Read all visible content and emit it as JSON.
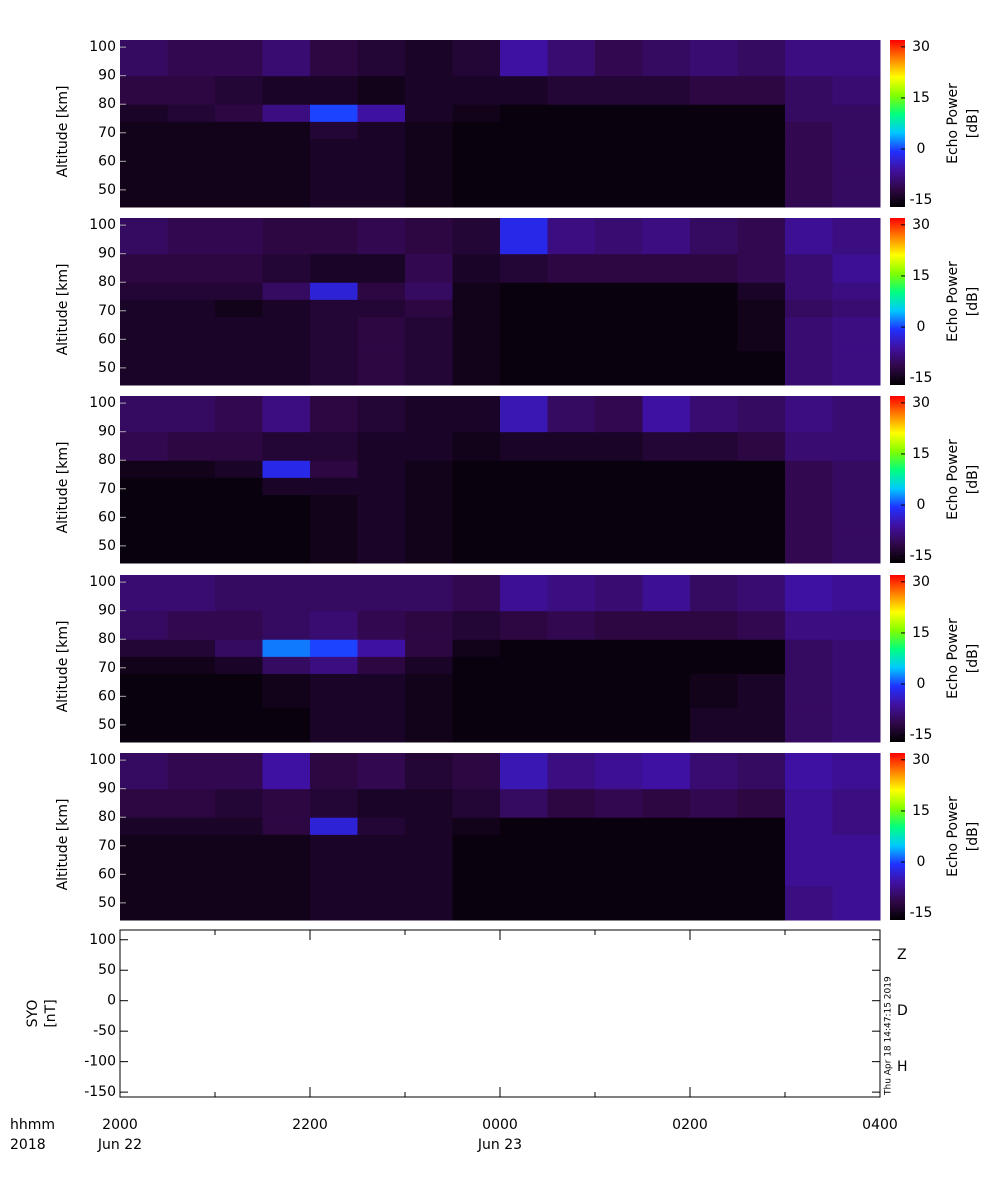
{
  "chart_data": [
    {
      "type": "heatmap",
      "ylabel": "Altitude [km]",
      "x_edges": [
        20,
        20.5,
        21,
        21.5,
        22,
        22.5,
        23,
        23.5,
        24,
        24.5,
        25,
        25.5,
        26,
        26.5,
        27,
        27.5,
        28
      ],
      "y_edges": [
        44,
        56,
        68,
        74,
        80,
        90,
        102.5
      ],
      "z": [
        [
          -15,
          -15,
          -15,
          -15,
          -14,
          -14,
          -15,
          -16,
          -16,
          -16,
          -16,
          -16,
          -16,
          -16,
          -11,
          -10
        ],
        [
          -15,
          -15,
          -15,
          -15,
          -14,
          -14,
          -15,
          -16,
          -16,
          -16,
          -16,
          -16,
          -16,
          -16,
          -11,
          -10
        ],
        [
          -15,
          -15,
          -15,
          -15,
          -13,
          -14,
          -15,
          -16,
          -16,
          -16,
          -16,
          -16,
          -16,
          -16,
          -11,
          -10
        ],
        [
          -14,
          -13,
          -12,
          -8,
          0,
          -6,
          -14,
          -15,
          -16,
          -16,
          -16,
          -16,
          -16,
          -16,
          -10,
          -10
        ],
        [
          -12,
          -12,
          -13,
          -14,
          -14,
          -15,
          -14,
          -14,
          -14,
          -13,
          -13,
          -13,
          -12,
          -12,
          -10,
          -9
        ],
        [
          -10,
          -11,
          -11,
          -9,
          -12,
          -13,
          -14,
          -13,
          -6,
          -9,
          -11,
          -10,
          -9,
          -10,
          -8,
          -8
        ]
      ],
      "xlim": [
        20,
        28
      ],
      "ylim": [
        44,
        102.5
      ],
      "yticks": [
        50,
        60,
        70,
        80,
        90,
        100
      ],
      "colorbar": {
        "label": [
          "Echo Power",
          "[dB]"
        ],
        "lim": [
          -17,
          32
        ],
        "ticks": [
          -15,
          0,
          15,
          30
        ]
      }
    },
    {
      "type": "heatmap",
      "ylabel": "Altitude [km]",
      "x_edges": [
        20,
        20.5,
        21,
        21.5,
        22,
        22.5,
        23,
        23.5,
        24,
        24.5,
        25,
        25.5,
        26,
        26.5,
        27,
        27.5,
        28
      ],
      "y_edges": [
        44,
        56,
        68,
        74,
        80,
        90,
        102.5
      ],
      "z": [
        [
          -14,
          -14,
          -14,
          -14,
          -13,
          -12,
          -13,
          -15,
          -16,
          -16,
          -16,
          -16,
          -16,
          -16,
          -9,
          -8
        ],
        [
          -14,
          -14,
          -14,
          -14,
          -13,
          -12,
          -13,
          -15,
          -16,
          -16,
          -16,
          -16,
          -16,
          -15,
          -9,
          -8
        ],
        [
          -14,
          -14,
          -15,
          -14,
          -13,
          -13,
          -12,
          -15,
          -16,
          -16,
          -16,
          -16,
          -16,
          -15,
          -10,
          -9
        ],
        [
          -13,
          -13,
          -13,
          -10,
          -3,
          -12,
          -10,
          -15,
          -16,
          -16,
          -16,
          -16,
          -16,
          -14,
          -9,
          -8
        ],
        [
          -12,
          -12,
          -12,
          -13,
          -14,
          -14,
          -11,
          -14,
          -13,
          -12,
          -12,
          -12,
          -12,
          -11,
          -9,
          -7
        ],
        [
          -10,
          -11,
          -11,
          -12,
          -12,
          -11,
          -12,
          -13,
          -2,
          -8,
          -9,
          -8,
          -10,
          -11,
          -7,
          -8
        ]
      ],
      "xlim": [
        20,
        28
      ],
      "ylim": [
        44,
        102.5
      ],
      "yticks": [
        50,
        60,
        70,
        80,
        90,
        100
      ],
      "colorbar": {
        "label": [
          "Echo Power",
          "[dB]"
        ],
        "lim": [
          -17,
          32
        ],
        "ticks": [
          -15,
          0,
          15,
          30
        ]
      }
    },
    {
      "type": "heatmap",
      "ylabel": "Altitude [km]",
      "x_edges": [
        20,
        20.5,
        21,
        21.5,
        22,
        22.5,
        23,
        23.5,
        24,
        24.5,
        25,
        25.5,
        26,
        26.5,
        27,
        27.5,
        28
      ],
      "y_edges": [
        44,
        56,
        68,
        74,
        80,
        90,
        102.5
      ],
      "z": [
        [
          -16,
          -16,
          -16,
          -16,
          -15,
          -14,
          -15,
          -16,
          -16,
          -16,
          -16,
          -16,
          -16,
          -16,
          -11,
          -10
        ],
        [
          -16,
          -16,
          -16,
          -16,
          -15,
          -14,
          -15,
          -16,
          -16,
          -16,
          -16,
          -16,
          -16,
          -16,
          -11,
          -10
        ],
        [
          -16,
          -16,
          -16,
          -14,
          -14,
          -14,
          -15,
          -16,
          -16,
          -16,
          -16,
          -16,
          -16,
          -16,
          -11,
          -10
        ],
        [
          -15,
          -15,
          -14,
          -2,
          -12,
          -14,
          -15,
          -16,
          -16,
          -16,
          -16,
          -16,
          -16,
          -16,
          -11,
          -10
        ],
        [
          -11,
          -12,
          -12,
          -13,
          -13,
          -14,
          -14,
          -15,
          -14,
          -14,
          -14,
          -13,
          -13,
          -12,
          -9,
          -9
        ],
        [
          -10,
          -10,
          -11,
          -8,
          -12,
          -13,
          -14,
          -14,
          -5,
          -10,
          -11,
          -6,
          -9,
          -10,
          -8,
          -9
        ]
      ],
      "xlim": [
        20,
        28
      ],
      "ylim": [
        44,
        102.5
      ],
      "yticks": [
        50,
        60,
        70,
        80,
        90,
        100
      ],
      "colorbar": {
        "label": [
          "Echo Power",
          "[dB]"
        ],
        "lim": [
          -17,
          32
        ],
        "ticks": [
          -15,
          0,
          15,
          30
        ]
      }
    },
    {
      "type": "heatmap",
      "ylabel": "Altitude [km]",
      "x_edges": [
        20,
        20.5,
        21,
        21.5,
        22,
        22.5,
        23,
        23.5,
        24,
        24.5,
        25,
        25.5,
        26,
        26.5,
        27,
        27.5,
        28
      ],
      "y_edges": [
        44,
        56,
        68,
        74,
        80,
        90,
        102.5
      ],
      "z": [
        [
          -16,
          -16,
          -16,
          -16,
          -14,
          -14,
          -15,
          -16,
          -16,
          -16,
          -16,
          -16,
          -14,
          -14,
          -10,
          -9
        ],
        [
          -16,
          -16,
          -16,
          -15,
          -14,
          -14,
          -15,
          -16,
          -16,
          -16,
          -16,
          -16,
          -15,
          -14,
          -10,
          -9
        ],
        [
          -15,
          -15,
          -14,
          -10,
          -8,
          -12,
          -14,
          -16,
          -16,
          -16,
          -16,
          -16,
          -16,
          -16,
          -10,
          -9
        ],
        [
          -13,
          -13,
          -10,
          2,
          0,
          -6,
          -12,
          -15,
          -16,
          -16,
          -16,
          -16,
          -16,
          -16,
          -10,
          -9
        ],
        [
          -10,
          -11,
          -11,
          -10,
          -9,
          -11,
          -12,
          -13,
          -12,
          -11,
          -12,
          -12,
          -12,
          -11,
          -8,
          -8
        ],
        [
          -9,
          -9,
          -10,
          -10,
          -10,
          -10,
          -10,
          -11,
          -7,
          -8,
          -9,
          -7,
          -10,
          -9,
          -6,
          -7
        ]
      ],
      "xlim": [
        20,
        28
      ],
      "ylim": [
        44,
        102.5
      ],
      "yticks": [
        50,
        60,
        70,
        80,
        90,
        100
      ],
      "colorbar": {
        "label": [
          "Echo Power",
          "[dB]"
        ],
        "lim": [
          -17,
          32
        ],
        "ticks": [
          -15,
          0,
          15,
          30
        ]
      }
    },
    {
      "type": "heatmap",
      "ylabel": "Altitude [km]",
      "x_edges": [
        20,
        20.5,
        21,
        21.5,
        22,
        22.5,
        23,
        23.5,
        24,
        24.5,
        25,
        25.5,
        26,
        26.5,
        27,
        27.5,
        28
      ],
      "y_edges": [
        44,
        56,
        68,
        74,
        80,
        90,
        102.5
      ],
      "z": [
        [
          -15,
          -15,
          -15,
          -15,
          -14,
          -14,
          -14,
          -16,
          -16,
          -16,
          -16,
          -16,
          -16,
          -16,
          -8,
          -7
        ],
        [
          -15,
          -15,
          -15,
          -15,
          -14,
          -14,
          -14,
          -16,
          -16,
          -16,
          -16,
          -16,
          -16,
          -16,
          -7,
          -7
        ],
        [
          -15,
          -15,
          -15,
          -15,
          -14,
          -14,
          -14,
          -16,
          -16,
          -16,
          -16,
          -16,
          -16,
          -16,
          -7,
          -7
        ],
        [
          -14,
          -14,
          -14,
          -12,
          -3,
          -13,
          -14,
          -15,
          -16,
          -16,
          -16,
          -16,
          -16,
          -16,
          -7,
          -8
        ],
        [
          -12,
          -12,
          -13,
          -12,
          -13,
          -14,
          -14,
          -13,
          -10,
          -12,
          -11,
          -12,
          -11,
          -12,
          -7,
          -8
        ],
        [
          -10,
          -11,
          -11,
          -6,
          -12,
          -11,
          -13,
          -12,
          -5,
          -8,
          -7,
          -6,
          -9,
          -10,
          -6,
          -7
        ]
      ],
      "xlim": [
        20,
        28
      ],
      "ylim": [
        44,
        102.5
      ],
      "yticks": [
        50,
        60,
        70,
        80,
        90,
        100
      ],
      "colorbar": {
        "label": [
          "Echo Power",
          "[dB]"
        ],
        "lim": [
          -17,
          32
        ],
        "ticks": [
          -15,
          0,
          15,
          30
        ]
      }
    },
    {
      "type": "line",
      "ylabel": [
        "SYO",
        "[nT]"
      ],
      "series": [
        {
          "name": "Z",
          "color": "#e00000",
          "values": []
        },
        {
          "name": "D",
          "color": "#00d000",
          "values": []
        },
        {
          "name": "H",
          "color": "#0000e0",
          "values": []
        }
      ],
      "xlim": [
        20,
        28
      ],
      "ylim": [
        -158,
        116
      ],
      "yticks": [
        100,
        50,
        0,
        -50,
        -100,
        -150
      ],
      "xticks": [
        {
          "value": 20,
          "label": "2000"
        },
        {
          "value": 22,
          "label": "2200"
        },
        {
          "value": 24,
          "label": "0000"
        },
        {
          "value": 26,
          "label": "0200"
        },
        {
          "value": 28,
          "label": "0400"
        }
      ],
      "xminor": [
        21,
        23,
        25,
        27
      ],
      "date_labels": [
        {
          "value": 20,
          "label": "Jun 22"
        },
        {
          "value": 24,
          "label": "Jun 23"
        }
      ],
      "axis_row_labels": [
        "hhmm",
        "2018"
      ],
      "timestamp": "Thu Apr 18 14:47:15 2019"
    }
  ],
  "colormap": [
    "#000000",
    "#300848",
    "#4010a0",
    "#2030ff",
    "#00c8ff",
    "#00ff80",
    "#80ff00",
    "#ffff00",
    "#ff8000",
    "#ff0000"
  ]
}
